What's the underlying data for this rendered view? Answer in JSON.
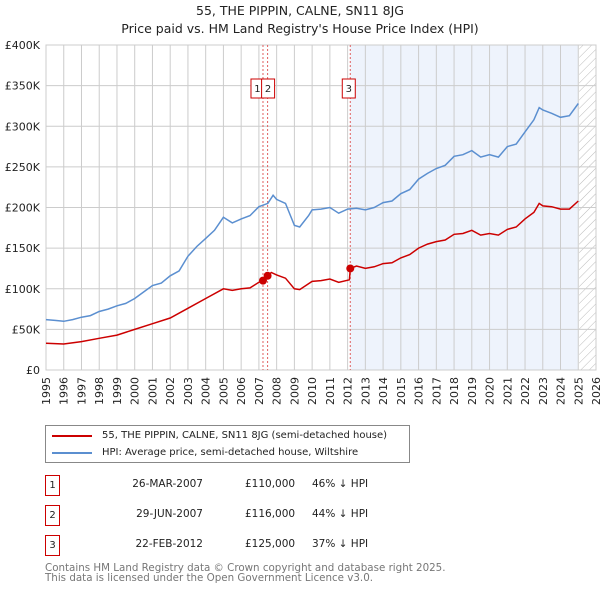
{
  "title_line1": "55, THE PIPPIN, CALNE, SN11 8JG",
  "title_line2": "Price paid vs. HM Land Registry's House Price Index (HPI)",
  "chart_data": {
    "type": "line",
    "title": "Price paid vs. HM Land Registry's House Price Index (HPI)",
    "xlim": [
      1995,
      2026
    ],
    "ylim": [
      0,
      400000
    ],
    "x_ticks": [
      1995,
      1996,
      1997,
      1998,
      1999,
      2000,
      2001,
      2002,
      2003,
      2004,
      2005,
      2006,
      2007,
      2008,
      2009,
      2010,
      2011,
      2012,
      2013,
      2014,
      2015,
      2016,
      2017,
      2018,
      2019,
      2020,
      2021,
      2022,
      2023,
      2024,
      2025,
      2026
    ],
    "y_ticks": [
      {
        "v": 0,
        "label": "£0"
      },
      {
        "v": 50000,
        "label": "£50K"
      },
      {
        "v": 100000,
        "label": "£100K"
      },
      {
        "v": 150000,
        "label": "£150K"
      },
      {
        "v": 200000,
        "label": "£200K"
      },
      {
        "v": 250000,
        "label": "£250K"
      },
      {
        "v": 300000,
        "label": "£300K"
      },
      {
        "v": 350000,
        "label": "£350K"
      },
      {
        "v": 400000,
        "label": "£400K"
      }
    ],
    "grid": true,
    "shaded_from": 2012.15,
    "shaded_to": 2025.0,
    "hatched_from": 2025.05,
    "series": [
      {
        "name": "55, THE PIPPIN, CALNE, SN11 8JG (semi-detached house)",
        "color": "#cc0000",
        "x": [
          1995,
          1996,
          1997,
          1998,
          1999,
          2000,
          2001,
          2002,
          2003,
          2004,
          2005,
          2005.5,
          2006,
          2006.5,
          2007,
          2007.23,
          2007.5,
          2007.7,
          2008,
          2008.5,
          2009,
          2009.3,
          2010,
          2010.5,
          2011,
          2011.5,
          2012.1,
          2012.15,
          2012.5,
          2013,
          2013.5,
          2014,
          2014.5,
          2015,
          2015.5,
          2016,
          2016.5,
          2017,
          2017.5,
          2018,
          2018.5,
          2019,
          2019.5,
          2020,
          2020.5,
          2021,
          2021.5,
          2022,
          2022.5,
          2022.8,
          2023,
          2023.5,
          2024,
          2024.5,
          2025
        ],
        "y": [
          33000,
          32000,
          35000,
          39000,
          43000,
          50000,
          57000,
          64000,
          76000,
          88000,
          100000,
          98000,
          100000,
          101000,
          108000,
          110000,
          116000,
          120000,
          117000,
          113000,
          100000,
          99000,
          109000,
          110000,
          112000,
          108000,
          111000,
          125000,
          128000,
          125000,
          127000,
          131000,
          132000,
          138000,
          142000,
          150000,
          155000,
          158000,
          160000,
          167000,
          168000,
          172000,
          166000,
          168000,
          166000,
          173000,
          176000,
          186000,
          194000,
          205000,
          202000,
          201000,
          198000,
          198000,
          208000
        ]
      },
      {
        "name": "HPI: Average price, semi-detached house, Wiltshire",
        "color": "#5b8fd0",
        "x": [
          1995,
          1995.5,
          1996,
          1996.5,
          1997,
          1997.5,
          1998,
          1998.5,
          1999,
          1999.5,
          2000,
          2000.5,
          2001,
          2001.5,
          2002,
          2002.5,
          2003,
          2003.5,
          2004,
          2004.5,
          2005,
          2005.5,
          2006,
          2006.5,
          2007,
          2007.5,
          2007.8,
          2008,
          2008.5,
          2009,
          2009.3,
          2009.8,
          2010,
          2010.5,
          2011,
          2011.5,
          2012,
          2012.5,
          2013,
          2013.5,
          2014,
          2014.5,
          2015,
          2015.5,
          2016,
          2016.5,
          2017,
          2017.5,
          2018,
          2018.5,
          2019,
          2019.5,
          2020,
          2020.5,
          2021,
          2021.5,
          2022,
          2022.5,
          2022.8,
          2023,
          2023.5,
          2024,
          2024.5,
          2025
        ],
        "y": [
          62000,
          61000,
          60000,
          62000,
          65000,
          67000,
          72000,
          75000,
          79000,
          82000,
          88000,
          96000,
          104000,
          107000,
          116000,
          122000,
          140000,
          152000,
          162000,
          172000,
          188000,
          181000,
          186000,
          190000,
          201000,
          205000,
          215000,
          210000,
          205000,
          178000,
          176000,
          190000,
          197000,
          198000,
          200000,
          193000,
          198000,
          199000,
          197000,
          200000,
          206000,
          208000,
          217000,
          222000,
          235000,
          242000,
          248000,
          252000,
          263000,
          265000,
          270000,
          262000,
          265000,
          262000,
          275000,
          278000,
          293000,
          308000,
          323000,
          320000,
          316000,
          311000,
          313000,
          328000
        ]
      }
    ],
    "sales": [
      {
        "id": "1",
        "x": 2007.23,
        "price": 110000,
        "date": "26-MAR-2007",
        "price_label": "£110,000",
        "hpi": "46% ↓ HPI"
      },
      {
        "id": "2",
        "x": 2007.49,
        "price": 116000,
        "date": "29-JUN-2007",
        "price_label": "£116,000",
        "hpi": "44% ↓ HPI"
      },
      {
        "id": "3",
        "x": 2012.15,
        "price": 125000,
        "date": "22-FEB-2012",
        "price_label": "£125,000",
        "hpi": "37% ↓ HPI"
      }
    ]
  },
  "legend": {
    "property": "55, THE PIPPIN, CALNE, SN11 8JG (semi-detached house)",
    "hpi": "HPI: Average price, semi-detached house, Wiltshire"
  },
  "footer": {
    "line1": "Contains HM Land Registry data © Crown copyright and database right 2025.",
    "line2": "This data is licensed under the Open Government Licence v3.0."
  }
}
